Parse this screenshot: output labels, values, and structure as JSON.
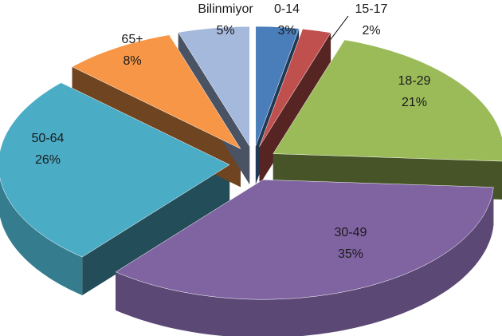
{
  "chart_data": {
    "type": "pie",
    "categories": [
      "0-14",
      "15-17",
      "18-29",
      "30-49",
      "50-64",
      "65+",
      "Bilinmiyor"
    ],
    "values": [
      3,
      2,
      21,
      35,
      26,
      8,
      5
    ],
    "value_labels": [
      "3%",
      "2%",
      "21%",
      "35%",
      "26%",
      "8%",
      "5%"
    ],
    "colors": [
      "#4a7ebb",
      "#c0504d",
      "#9bbb59",
      "#8064a2",
      "#4bacc6",
      "#f79646",
      "#a5b9dc"
    ]
  }
}
